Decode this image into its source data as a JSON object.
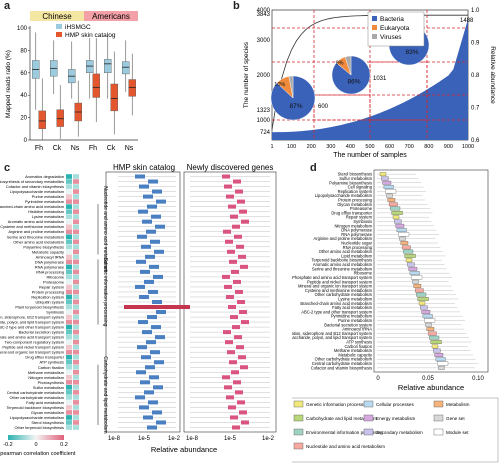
{
  "panel_labels": {
    "a": "a",
    "b": "b",
    "c": "c",
    "d": "d"
  },
  "panel_a": {
    "group_labels": [
      "Chinese",
      "Americans"
    ],
    "group_colors": [
      "#f5e6a3",
      "#f4a0a8"
    ],
    "ylabel": "Mapped reads ratio (%)",
    "yticks": [
      "0",
      "20",
      "40",
      "60",
      "80",
      "100"
    ],
    "xcats": [
      "Fh",
      "Ck",
      "Ns",
      "Fh",
      "Ck",
      "Ns"
    ],
    "legend": [
      "iHSMGC",
      "HMP skin catalog"
    ],
    "colors": {
      "ihsmgc": "#9ccbe0",
      "hmp": "#e4572e"
    },
    "chart_data": {
      "type": "box",
      "categories": [
        "Fh",
        "Ck",
        "Ns",
        "Fh",
        "Ck",
        "Ns"
      ],
      "series": [
        {
          "name": "iHSMGC",
          "median": [
            63,
            64,
            57,
            66,
            68,
            65
          ],
          "q1": [
            55,
            57,
            51,
            60,
            60,
            59
          ],
          "q3": [
            71,
            71,
            63,
            71,
            72,
            70
          ],
          "whisker_low": [
            27,
            41,
            37,
            37,
            37,
            43
          ],
          "whisker_high": [
            96,
            89,
            88,
            91,
            93,
            89
          ]
        },
        {
          "name": "HMP skin catalog",
          "median": [
            17,
            19,
            25,
            47,
            37,
            47
          ],
          "q1": [
            10,
            12,
            17,
            38,
            26,
            39
          ],
          "q3": [
            26,
            27,
            33,
            59,
            50,
            54
          ],
          "whisker_low": [
            0,
            1,
            3,
            16,
            5,
            22
          ],
          "whisker_high": [
            55,
            49,
            53,
            91,
            79,
            77
          ]
        }
      ],
      "ylim": [
        0,
        100
      ]
    }
  },
  "panel_b": {
    "ylabel_left": "The number of species",
    "ylabel_right": "Relative abundance",
    "xlabel": "The number of samples",
    "left_ticks": [
      "724",
      "1000",
      "1323",
      "2000",
      "3000",
      "3843",
      "4000"
    ],
    "right_ticks": [
      "0.6",
      "0.7",
      "0.8",
      "0.9",
      "1.0"
    ],
    "xticks": [
      "1",
      "100",
      "200",
      "300",
      "400",
      "500",
      "600",
      "700",
      "800",
      "900",
      "1000"
    ],
    "annotations": [
      "600",
      "1031",
      "1488"
    ],
    "legend": [
      "Bacteria",
      "Eukaryota",
      "Viruses"
    ],
    "legend_colors": [
      "#3a62b8",
      "#f08a3c",
      "#a9a9a9"
    ],
    "pies": [
      {
        "label": "87%",
        "values": [
          87,
          10,
          3
        ],
        "small": "10%"
      },
      {
        "label": "86%",
        "values": [
          86,
          9,
          5
        ],
        "small": "9%"
      },
      {
        "label": "83%",
        "values": [
          83,
          11,
          6
        ],
        "small": "11%"
      }
    ]
  },
  "panel_c": {
    "title_left": "HMP skin catalog",
    "title_right": "Newly discovered genes",
    "xlabel": "Relative abundance",
    "xticks": [
      "1e-8",
      "1e-5",
      "1e-2"
    ],
    "legend_title": "Spearman correlation coefficient",
    "legend_ticks": [
      "-0.2",
      "0",
      "0.2"
    ],
    "categories": [
      "Nucleotide and amino acid metabolism",
      "Genetic information processing",
      "Carbohydrate and lipid metabolism"
    ],
    "rows": [
      "Aromatics degradation",
      "Biosynthesis of secondary metabolites",
      "Cofactor and vitamin biosynthesis",
      "Lipopolysaccharide metabolism",
      "Purine metabolism",
      "Pyrimidine metabolism",
      "Branched-chain amino acid metabolism",
      "Histidine metabolism",
      "Lysine metabolism",
      "Aromatic amino acid metabolism",
      "Cysteine and methionine metabolism",
      "Arginine and proline metabolism",
      "Serine and threonine metabolism",
      "Other amino acid metabolism",
      "Polyamine biosynthesis",
      "Metabolic capacity",
      "Aminoacyl tRNA",
      "DNA polymerase",
      "RNA polymerase",
      "RNA processing",
      "Ribosome",
      "Proteasome",
      "Repair system",
      "Protein processing",
      "Replication system",
      "Ubiquitin system",
      "Plant terpenoid biosynthesis",
      "Symbiosis",
      "Cation, siderophore, B12 transport system",
      "Saccharide, polyol, and lipid transport system",
      "ABC-2 type and other transport system",
      "Bacterial secretion system",
      "Phosphate and amino acid transport system",
      "Two-component regulatory system",
      "Peptide and nickel transport system",
      "Mineral and organic ion transport system",
      "Drug efflux transporter",
      "ATP synthesis",
      "Carbon fixation",
      "Methane metabolism",
      "Nitrogen metabolism",
      "Photosynthesis",
      "Sulfur metabolism",
      "Central carbohydrate metabolism",
      "Other carbohydrate metabolism",
      "Fatty acid metabolism",
      "Terpenoid backbone biosynthesis",
      "Glycan metabolism",
      "Lipopolysaccharide metabolism",
      "Sterol biosynthesis",
      "Other terpenoid biosynthesis"
    ]
  },
  "panel_d": {
    "xlabel": "Relative abundance",
    "xticks": [
      "0",
      "0.05",
      "0.10"
    ],
    "rows": [
      "Sterol biosynthesis",
      "Sulfur metabolism",
      "Polyamine biosynthesis",
      "Cell signaling",
      "Replication system",
      "Lipopolysaccharide metabolism",
      "Protein processing",
      "Glycan metabolism",
      "Proteasome",
      "Drug efflux transporter",
      "Repair system",
      "Symbiosis",
      "Nitrogen metabolism",
      "DNA polymerase",
      "RNA polymerase",
      "Arginine and proline metabolism",
      "Nucleotide sugar",
      "RNA processing",
      "Other amino acid metabolism",
      "Lipid metabolism",
      "Terpenoid backbone biosynthesis",
      "Aromatic amino acid metabolism",
      "Serine and threonine metabolism",
      "Ribosome",
      "Phosphate and amino acid transport system",
      "Peptide and nickel transport system",
      "Mineral and organic ion transport system",
      "Cysteine and methionine metabolism",
      "Other carbohydrate metabolism",
      "Lysine metabolism",
      "Branched-chain amino acid metabolism",
      "Fatty acid metabolism",
      "ABC-2 type and other transport system",
      "Pyrimidine metabolism",
      "Purine metabolism",
      "Bacterial secretion system",
      "Aminoacyl tRNA",
      "Cation, siderophore and B12 transport system",
      "Saccharide, polyol, and lipid transport system",
      "ATP synthesis",
      "Carbon fixation",
      "Methane metabolism",
      "Metabolic capacity",
      "Other carbohydrate metabolism",
      "Central carbohydrate metabolism",
      "Cofactor and vitamin biosynthesis"
    ],
    "legend": [
      {
        "label": "Genetic information processing",
        "color": "#f2e97a"
      },
      {
        "label": "Cellular processes",
        "color": "#b8d9ef"
      },
      {
        "label": "Metabolism",
        "color": "#f5b27a"
      },
      {
        "label": "Carbohydrate and lipid metabolism",
        "color": "#b9d77a"
      },
      {
        "label": "Energy metabolism",
        "color": "#d6a8e0"
      },
      {
        "label": "Gene set",
        "color": "#d8d8d8"
      },
      {
        "label": "Environmental information processing",
        "color": "#9fd3c4"
      },
      {
        "label": "Secondary metabolism",
        "color": "#c7c3ea"
      },
      {
        "label": "Module set",
        "color": "#ffffff"
      },
      {
        "label": "Nucleotide and amino acid metabolism",
        "color": "#f7a9a0"
      }
    ]
  }
}
